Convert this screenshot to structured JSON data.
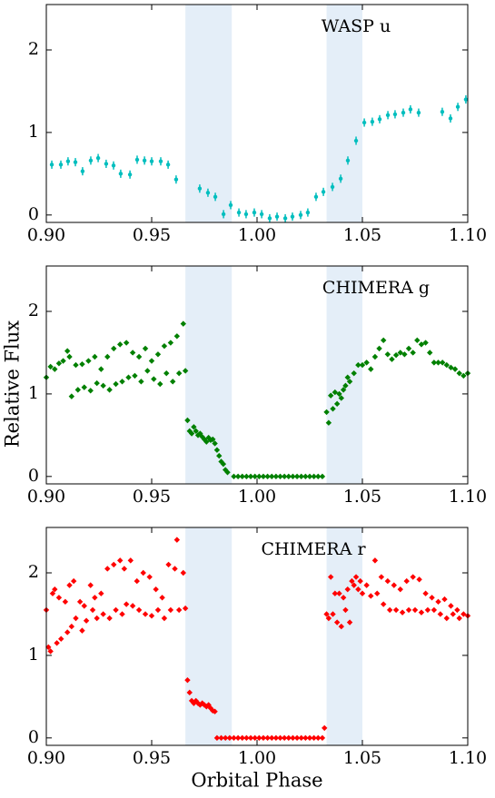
{
  "chart_data": [
    {
      "type": "errorbar",
      "annotation": "WASP u",
      "color": "#00bebe",
      "span_color": "#e4eef8",
      "spans": [
        [
          0.966,
          0.988
        ],
        [
          1.033,
          1.05
        ]
      ],
      "xlim": [
        0.9,
        1.1
      ],
      "ylim": [
        -0.09,
        2.55
      ],
      "xticks": [
        {
          "value": 0.9,
          "label": "0.90"
        },
        0.95,
        {
          "value": 1.0,
          "label": "1.00"
        },
        1.05,
        {
          "value": 1.1,
          "label": "1.10"
        }
      ],
      "yticks": [
        0,
        1,
        2
      ],
      "x": [
        0.9026,
        0.9069,
        0.9103,
        0.9138,
        0.9172,
        0.9211,
        0.9246,
        0.9284,
        0.9319,
        0.9353,
        0.9397,
        0.9431,
        0.9466,
        0.95,
        0.9543,
        0.9578,
        0.9616,
        0.9728,
        0.9767,
        0.9802,
        0.9841,
        0.9875,
        0.9914,
        0.9948,
        0.9987,
        1.0022,
        1.006,
        1.0095,
        1.0134,
        1.0168,
        1.0207,
        1.0241,
        1.028,
        1.0315,
        1.0358,
        1.0397,
        1.0431,
        1.047,
        1.0509,
        1.0547,
        1.0582,
        1.0621,
        1.0655,
        1.0694,
        1.0728,
        1.0767,
        1.0879,
        1.0918,
        1.0953,
        1.0991
      ],
      "values": [
        0.61,
        0.61,
        0.65,
        0.64,
        0.53,
        0.66,
        0.69,
        0.62,
        0.6,
        0.5,
        0.49,
        0.67,
        0.66,
        0.65,
        0.65,
        0.61,
        0.43,
        0.32,
        0.27,
        0.22,
        0.01,
        0.12,
        0.03,
        0.01,
        0.03,
        0.01,
        -0.04,
        -0.02,
        -0.04,
        -0.02,
        0.0,
        0.03,
        0.22,
        0.28,
        0.34,
        0.44,
        0.66,
        0.9,
        1.12,
        1.13,
        1.16,
        1.21,
        1.22,
        1.24,
        1.28,
        1.24,
        1.25,
        1.17,
        1.31,
        1.4
      ],
      "errors": [
        0.05,
        0.05,
        0.05,
        0.05,
        0.05,
        0.05,
        0.05,
        0.05,
        0.05,
        0.05,
        0.05,
        0.05,
        0.05,
        0.05,
        0.05,
        0.05,
        0.05,
        0.05,
        0.05,
        0.05,
        0.05,
        0.05,
        0.05,
        0.05,
        0.05,
        0.05,
        0.05,
        0.05,
        0.05,
        0.05,
        0.05,
        0.05,
        0.05,
        0.05,
        0.05,
        0.05,
        0.05,
        0.05,
        0.05,
        0.05,
        0.05,
        0.05,
        0.05,
        0.05,
        0.05,
        0.05,
        0.05,
        0.05,
        0.05,
        0.05
      ]
    },
    {
      "type": "scatter",
      "annotation": "CHIMERA g",
      "ylabel": "Relative Flux",
      "color": "#008000",
      "span_color": "#e4eef8",
      "spans": [
        [
          0.966,
          0.988
        ],
        [
          1.033,
          1.05
        ]
      ],
      "xlim": [
        0.9,
        1.1
      ],
      "ylim": [
        -0.09,
        2.55
      ],
      "xticks": [
        {
          "value": 0.9,
          "label": "0.90"
        },
        0.95,
        {
          "value": 1.0,
          "label": "1.00"
        },
        1.05,
        {
          "value": 1.1,
          "label": "1.10"
        }
      ],
      "yticks": [
        0,
        1,
        2
      ],
      "x": [
        0.9,
        0.902,
        0.904,
        0.906,
        0.908,
        0.91,
        0.911,
        0.912,
        0.914,
        0.915,
        0.917,
        0.918,
        0.92,
        0.921,
        0.923,
        0.924,
        0.926,
        0.927,
        0.929,
        0.93,
        0.932,
        0.933,
        0.935,
        0.936,
        0.938,
        0.939,
        0.941,
        0.942,
        0.944,
        0.945,
        0.947,
        0.948,
        0.95,
        0.951,
        0.953,
        0.954,
        0.956,
        0.957,
        0.959,
        0.96,
        0.962,
        0.963,
        0.965,
        0.966,
        0.967,
        0.968,
        0.969,
        0.97,
        0.971,
        0.972,
        0.973,
        0.974,
        0.975,
        0.976,
        0.977,
        0.978,
        0.979,
        0.98,
        0.981,
        0.982,
        0.983,
        0.984,
        0.985,
        0.986,
        0.989,
        0.991,
        0.993,
        0.995,
        0.997,
        0.999,
        1.001,
        1.003,
        1.005,
        1.007,
        1.009,
        1.011,
        1.013,
        1.015,
        1.017,
        1.019,
        1.021,
        1.023,
        1.025,
        1.027,
        1.029,
        1.031,
        1.033,
        1.034,
        1.035,
        1.036,
        1.037,
        1.038,
        1.039,
        1.04,
        1.041,
        1.042,
        1.043,
        1.044,
        1.046,
        1.048,
        1.05,
        1.052,
        1.054,
        1.056,
        1.058,
        1.06,
        1.062,
        1.064,
        1.066,
        1.068,
        1.07,
        1.072,
        1.074,
        1.076,
        1.078,
        1.08,
        1.082,
        1.084,
        1.086,
        1.088,
        1.09,
        1.092,
        1.094,
        1.096,
        1.098,
        1.1
      ],
      "values": [
        1.2,
        1.33,
        1.3,
        1.37,
        1.4,
        1.52,
        1.45,
        0.97,
        1.35,
        1.05,
        1.36,
        1.08,
        1.4,
        1.04,
        1.45,
        1.13,
        1.3,
        1.1,
        1.45,
        1.05,
        1.55,
        1.12,
        1.6,
        1.15,
        1.62,
        1.2,
        1.5,
        1.22,
        1.45,
        1.15,
        1.55,
        1.28,
        1.4,
        1.18,
        1.48,
        1.12,
        1.58,
        1.25,
        1.62,
        1.15,
        1.7,
        1.25,
        1.85,
        1.28,
        0.68,
        0.55,
        0.52,
        0.6,
        0.55,
        0.5,
        0.52,
        0.48,
        0.45,
        0.42,
        0.47,
        0.44,
        0.45,
        0.4,
        0.32,
        0.25,
        0.18,
        0.15,
        0.08,
        0.05,
        0,
        0,
        0,
        0,
        0,
        0,
        0,
        0,
        0,
        0,
        0,
        0,
        0,
        0,
        0,
        0,
        0,
        0,
        0,
        0,
        0,
        0,
        0.78,
        0.65,
        0.98,
        0.82,
        1.02,
        0.88,
        1.0,
        0.95,
        1.05,
        1.1,
        1.2,
        1.15,
        1.25,
        1.35,
        1.35,
        1.38,
        1.3,
        1.45,
        1.55,
        1.65,
        1.48,
        1.42,
        1.47,
        1.5,
        1.48,
        1.55,
        1.5,
        1.65,
        1.6,
        1.62,
        1.5,
        1.38,
        1.38,
        1.38,
        1.35,
        1.32,
        1.3,
        1.25,
        1.22,
        1.25
      ]
    },
    {
      "type": "scatter",
      "annotation": "CHIMERA r",
      "xlabel": "Orbital Phase",
      "color": "#ff0000",
      "span_color": "#e4eef8",
      "spans": [
        [
          0.966,
          0.988
        ],
        [
          1.033,
          1.05
        ]
      ],
      "xlim": [
        0.9,
        1.1
      ],
      "ylim": [
        -0.09,
        2.55
      ],
      "xticks": [
        {
          "value": 0.9,
          "label": "0.90"
        },
        0.95,
        {
          "value": 1.0,
          "label": "1.00"
        },
        1.05,
        {
          "value": 1.1,
          "label": "1.10"
        }
      ],
      "yticks": [
        0,
        1,
        2
      ],
      "x": [
        0.9,
        0.901,
        0.902,
        0.903,
        0.904,
        0.905,
        0.906,
        0.907,
        0.909,
        0.91,
        0.911,
        0.912,
        0.913,
        0.914,
        0.916,
        0.917,
        0.918,
        0.919,
        0.921,
        0.922,
        0.923,
        0.924,
        0.926,
        0.927,
        0.929,
        0.93,
        0.932,
        0.933,
        0.935,
        0.936,
        0.937,
        0.938,
        0.94,
        0.941,
        0.943,
        0.944,
        0.946,
        0.947,
        0.949,
        0.95,
        0.952,
        0.953,
        0.955,
        0.956,
        0.958,
        0.959,
        0.961,
        0.962,
        0.963,
        0.965,
        0.966,
        0.967,
        0.968,
        0.969,
        0.97,
        0.971,
        0.972,
        0.973,
        0.974,
        0.975,
        0.976,
        0.977,
        0.978,
        0.979,
        0.98,
        0.981,
        0.983,
        0.985,
        0.987,
        0.989,
        0.991,
        0.993,
        0.995,
        0.997,
        0.999,
        1.001,
        1.003,
        1.005,
        1.007,
        1.009,
        1.011,
        1.013,
        1.015,
        1.017,
        1.019,
        1.021,
        1.023,
        1.025,
        1.027,
        1.029,
        1.031,
        1.032,
        1.033,
        1.034,
        1.035,
        1.036,
        1.037,
        1.038,
        1.039,
        1.04,
        1.041,
        1.042,
        1.043,
        1.044,
        1.045,
        1.046,
        1.047,
        1.048,
        1.049,
        1.05,
        1.052,
        1.054,
        1.056,
        1.057,
        1.059,
        1.06,
        1.062,
        1.063,
        1.065,
        1.066,
        1.068,
        1.069,
        1.071,
        1.072,
        1.074,
        1.075,
        1.077,
        1.078,
        1.08,
        1.081,
        1.083,
        1.084,
        1.086,
        1.087,
        1.089,
        1.09,
        1.092,
        1.093,
        1.095,
        1.096,
        1.098,
        1.1
      ],
      "values": [
        1.55,
        1.1,
        1.05,
        1.75,
        1.8,
        1.15,
        1.7,
        1.2,
        1.65,
        1.28,
        1.85,
        1.35,
        1.9,
        1.45,
        1.65,
        1.3,
        1.6,
        1.42,
        1.85,
        1.55,
        1.7,
        1.45,
        1.75,
        1.5,
        2.05,
        1.45,
        2.1,
        1.55,
        2.15,
        1.5,
        2.05,
        1.62,
        2.15,
        1.6,
        1.9,
        1.55,
        2.0,
        1.5,
        1.95,
        1.48,
        1.8,
        1.55,
        1.7,
        1.45,
        2.1,
        1.55,
        2.05,
        2.4,
        1.55,
        2.0,
        1.57,
        0.7,
        0.55,
        0.45,
        0.42,
        0.45,
        0.42,
        0.4,
        0.42,
        0.4,
        0.38,
        0.4,
        0.36,
        0.33,
        0.32,
        0,
        0,
        0,
        0,
        0,
        0,
        0,
        0,
        0,
        0,
        0,
        0,
        0,
        0,
        0,
        0,
        0,
        0,
        0,
        0,
        0,
        0,
        0,
        0,
        0,
        0,
        0.12,
        1.5,
        1.45,
        1.95,
        1.5,
        1.75,
        1.4,
        1.75,
        1.35,
        1.7,
        1.55,
        1.8,
        1.4,
        1.9,
        1.85,
        1.95,
        1.8,
        1.9,
        1.75,
        1.85,
        1.72,
        2.15,
        1.75,
        1.95,
        1.62,
        1.9,
        1.55,
        1.85,
        1.55,
        1.8,
        1.52,
        1.9,
        1.55,
        1.95,
        1.55,
        1.92,
        1.52,
        1.75,
        1.55,
        1.7,
        1.55,
        1.65,
        1.5,
        1.68,
        1.45,
        1.6,
        1.5,
        1.55,
        1.45,
        1.5,
        1.48
      ]
    }
  ]
}
